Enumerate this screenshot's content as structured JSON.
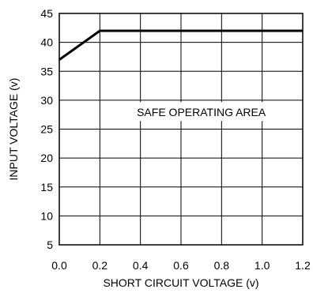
{
  "chart_data": {
    "type": "line",
    "xlabel": "SHORT CIRCUIT VOLTAGE (v)",
    "ylabel": "INPUT VOLTAGE (v)",
    "xlim": [
      0.0,
      1.2
    ],
    "ylim": [
      5,
      45
    ],
    "xticks": [
      "0.0",
      "0.2",
      "0.4",
      "0.6",
      "0.8",
      "1.0",
      "1.2"
    ],
    "yticks": [
      "5",
      "10",
      "15",
      "20",
      "25",
      "30",
      "35",
      "40",
      "45"
    ],
    "grid": true,
    "series": [
      {
        "x": [
          0.0,
          0.2,
          1.2
        ],
        "y": [
          37,
          42,
          42
        ],
        "color": "#000000"
      }
    ],
    "annotations": [
      {
        "text": "SAFE OPERATING AREA",
        "x": 0.7,
        "y": 27.5
      }
    ]
  }
}
